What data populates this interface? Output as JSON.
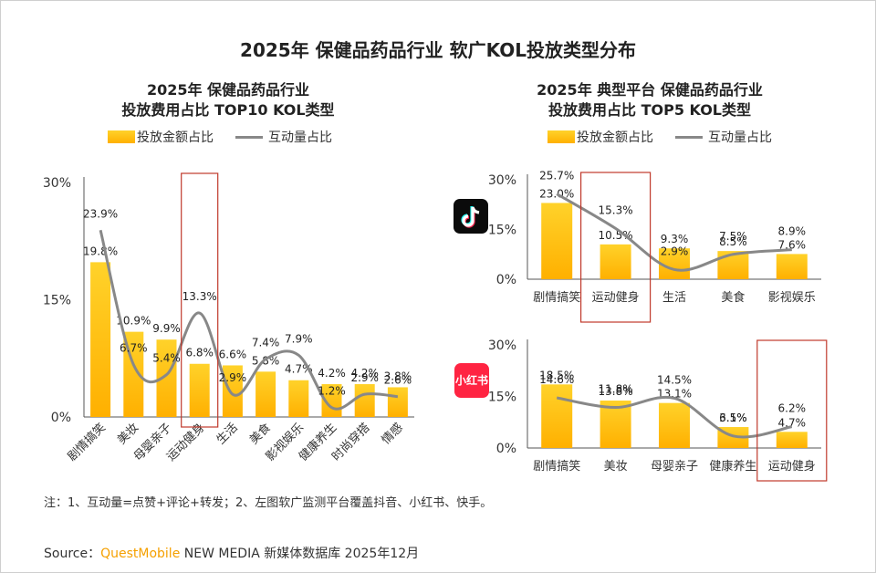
{
  "title": "2025年 保健品药品行业 软广KOL投放类型分布",
  "left": {
    "subtitle_line1": "2025年 保健品药品行业",
    "subtitle_line2": "投放费用占比 TOP10 KOL类型"
  },
  "right": {
    "subtitle_line1": "2025年 典型平台 保健品药品行业",
    "subtitle_line2": "投放费用占比 TOP5 KOL类型"
  },
  "legend": {
    "bar": "投放金额占比",
    "line": "互动量占比"
  },
  "icons": {
    "douyin": "douyin-app-icon",
    "xiaohongshu": "xiaohongshu-app-icon",
    "xhs_label": "小红书"
  },
  "colors": {
    "bar_top": "#ffd22a",
    "bar_bottom": "#ffb000",
    "line": "#888888",
    "highlight": "#c0392b",
    "brand": "#f5a000"
  },
  "note": "注：1、互动量=点赞+评论+转发；2、左图软广监测平台覆盖抖音、小红书、快手。",
  "source": {
    "prefix": "Source：",
    "brand": "QuestMobile",
    "rest": " NEW MEDIA 新媒体数据库 2025年12月"
  },
  "chart_data": [
    {
      "type": "bar",
      "title": "2025年 保健品药品行业 投放费用占比 TOP10 KOL类型",
      "categories": [
        "剧情搞笑",
        "美妆",
        "母婴亲子",
        "运动健身",
        "生活",
        "美食",
        "影视娱乐",
        "健康养生",
        "时尚穿搭",
        "情感"
      ],
      "series": [
        {
          "name": "投放金额占比",
          "kind": "bar",
          "values": [
            19.8,
            10.9,
            9.9,
            6.8,
            6.6,
            5.8,
            4.7,
            4.2,
            4.2,
            3.8
          ],
          "labels": [
            "19.8%",
            "10.9%",
            "9.9%",
            "6.8%",
            "6.6%",
            "5.8%",
            "4.7%",
            "4.2%",
            "4.2%",
            "3.8%"
          ]
        },
        {
          "name": "互动量占比",
          "kind": "line",
          "values": [
            23.9,
            6.7,
            5.4,
            13.3,
            2.9,
            7.4,
            7.9,
            1.2,
            2.9,
            2.6
          ],
          "labels": [
            "23.9%",
            "6.7%",
            "5.4%",
            "13.3%",
            "2.9%",
            "7.4%",
            "7.9%",
            "1.2%",
            "2.9%",
            "2.6%"
          ]
        }
      ],
      "yticks": [
        "0%",
        "15%",
        "30%"
      ],
      "ylim": [
        0,
        30
      ],
      "highlight": "运动健身"
    },
    {
      "type": "bar",
      "platform": "抖音",
      "categories": [
        "剧情搞笑",
        "运动健身",
        "生活",
        "美食",
        "影视娱乐"
      ],
      "series": [
        {
          "name": "投放金额占比",
          "kind": "bar",
          "values": [
            23.0,
            10.5,
            9.3,
            8.5,
            7.6
          ],
          "labels": [
            "23.0%",
            "10.5%",
            "9.3%",
            "8.5%",
            "7.6%"
          ]
        },
        {
          "name": "互动量占比",
          "kind": "line",
          "values": [
            25.7,
            15.3,
            2.9,
            7.5,
            8.9
          ],
          "labels": [
            "25.7%",
            "15.3%",
            "2.9%",
            "7.5%",
            "8.9%"
          ]
        }
      ],
      "yticks": [
        "0%",
        "15%",
        "30%"
      ],
      "ylim": [
        0,
        30
      ],
      "highlight": "运动健身"
    },
    {
      "type": "bar",
      "platform": "小红书",
      "categories": [
        "剧情搞笑",
        "美妆",
        "母婴亲子",
        "健康养生",
        "运动健身"
      ],
      "series": [
        {
          "name": "投放金额占比",
          "kind": "bar",
          "values": [
            18.5,
            13.8,
            13.1,
            6.1,
            4.7
          ],
          "labels": [
            "18.5%",
            "13.8%",
            "13.1%",
            "6.1%",
            "4.7%"
          ]
        },
        {
          "name": "互动量占比",
          "kind": "line",
          "values": [
            14.6,
            11.8,
            14.5,
            3.5,
            6.2
          ],
          "labels": [
            "14.6%",
            "11.8%",
            "14.5%",
            "3.5%",
            "6.2%"
          ]
        }
      ],
      "yticks": [
        "0%",
        "15%",
        "30%"
      ],
      "ylim": [
        0,
        30
      ],
      "highlight": "运动健身"
    }
  ]
}
